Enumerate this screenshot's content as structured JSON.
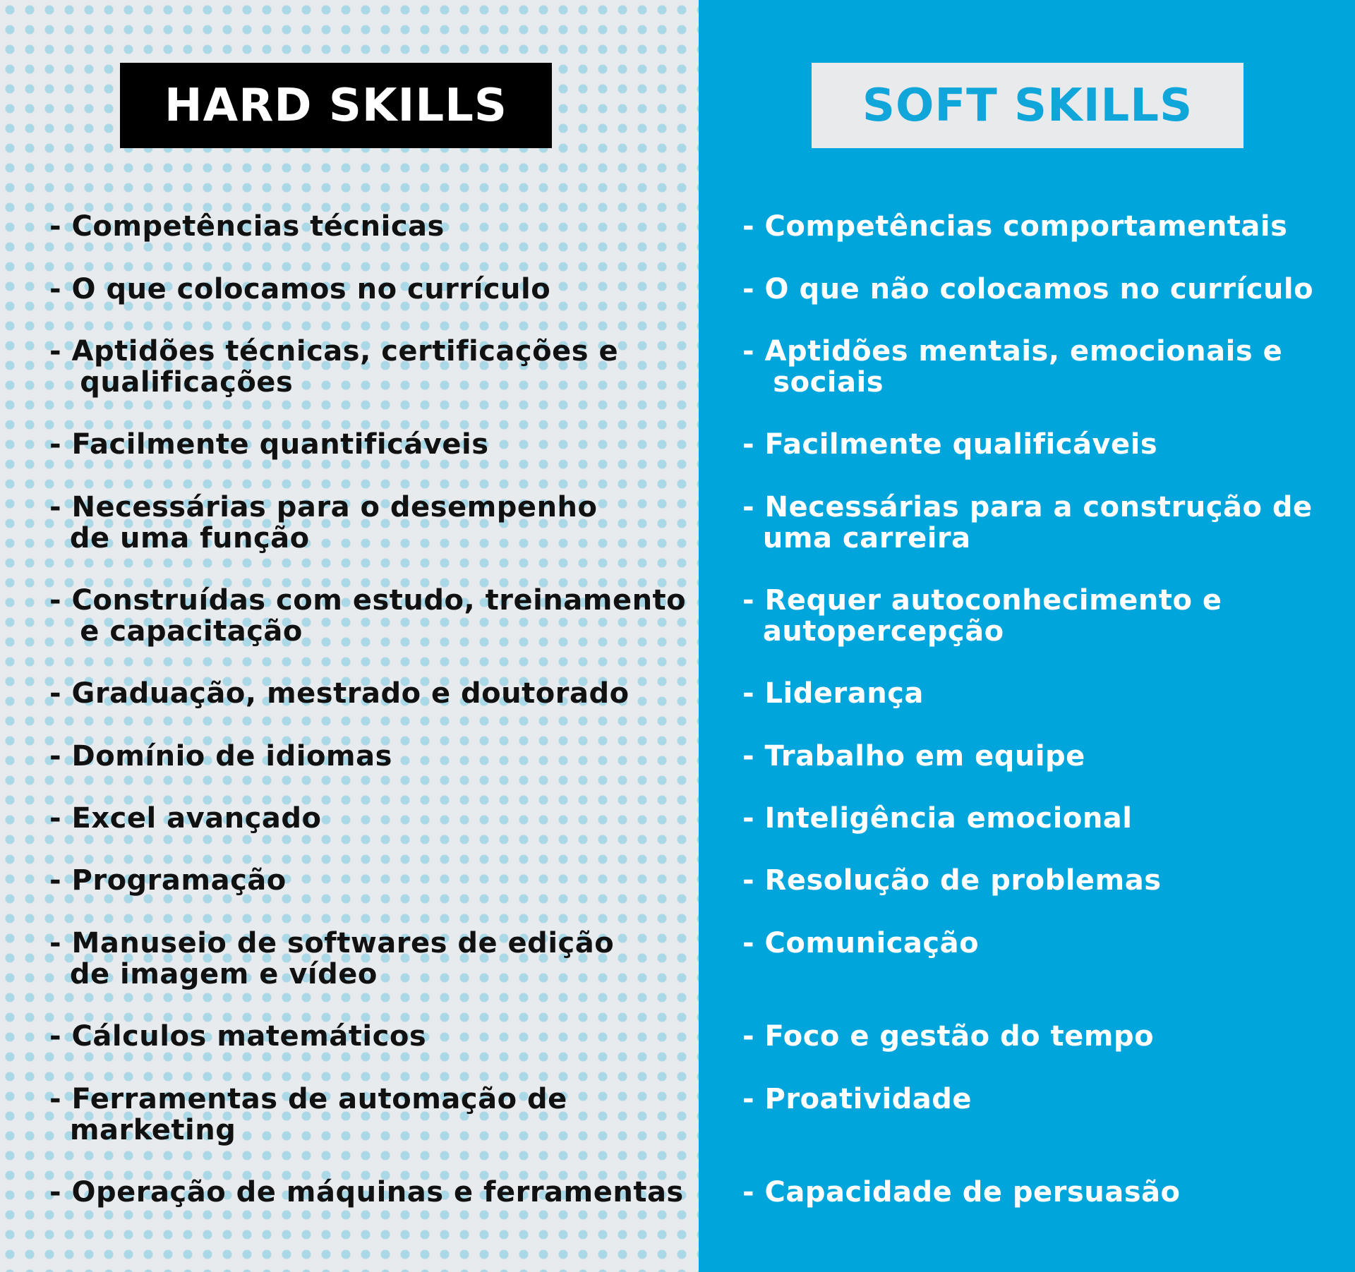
{
  "hard": {
    "title": "HARD SKILLS",
    "items": [
      {
        "line1": "- Competências técnicas",
        "line2": ""
      },
      {
        "line1": "- O que colocamos no currículo",
        "line2": ""
      },
      {
        "line1": "- Aptidões técnicas, certificações e",
        "line2": "   qualificações"
      },
      {
        "line1": "- Facilmente quantificáveis",
        "line2": ""
      },
      {
        "line1": "- Necessárias para o desempenho",
        "line2": "  de uma função"
      },
      {
        "line1": "- Construídas com estudo, treinamento",
        "line2": "   e capacitação"
      },
      {
        "line1": "- Graduação, mestrado e doutorado",
        "line2": ""
      },
      {
        "line1": "- Domínio de idiomas",
        "line2": ""
      },
      {
        "line1": "- Excel avançado",
        "line2": ""
      },
      {
        "line1": "- Programação",
        "line2": ""
      },
      {
        "line1": "- Manuseio de softwares de edição",
        "line2": "  de imagem e vídeo"
      },
      {
        "line1": "- Cálculos matemáticos",
        "line2": ""
      },
      {
        "line1": "- Ferramentas de automação de",
        "line2": "  marketing"
      },
      {
        "line1": "- Operação de máquinas e ferramentas",
        "line2": ""
      }
    ]
  },
  "soft": {
    "title": "SOFT SKILLS",
    "items": [
      {
        "line1": "- Competências comportamentais",
        "line2": ""
      },
      {
        "line1": "- O que não colocamos no currículo",
        "line2": ""
      },
      {
        "line1": "- Aptidões mentais, emocionais e",
        "line2": "   sociais"
      },
      {
        "line1": "- Facilmente qualificáveis",
        "line2": ""
      },
      {
        "line1": "- Necessárias para a construção de",
        "line2": "  uma carreira"
      },
      {
        "line1": "- Requer autoconhecimento e",
        "line2": "  autopercepção"
      },
      {
        "line1": "- Liderança",
        "line2": ""
      },
      {
        "line1": "- Trabalho em equipe",
        "line2": ""
      },
      {
        "line1": "- Inteligência emocional",
        "line2": ""
      },
      {
        "line1": "- Resolução de problemas",
        "line2": ""
      },
      {
        "line1": "- Comunicação",
        "line2": ""
      },
      {
        "line1": "- Foco e gestão do tempo",
        "line2": ""
      },
      {
        "line1": "- Proatividade",
        "line2": ""
      },
      {
        "line1": "- Capacidade de persuasão",
        "line2": ""
      }
    ]
  },
  "colors": {
    "hard_background": "#e7ebee",
    "dot_pattern": "#78c8e1",
    "soft_background": "#00a5dc",
    "hard_title_box": "#000000",
    "soft_title_box": "#e8eaec",
    "soft_title_text": "#11a6da"
  }
}
